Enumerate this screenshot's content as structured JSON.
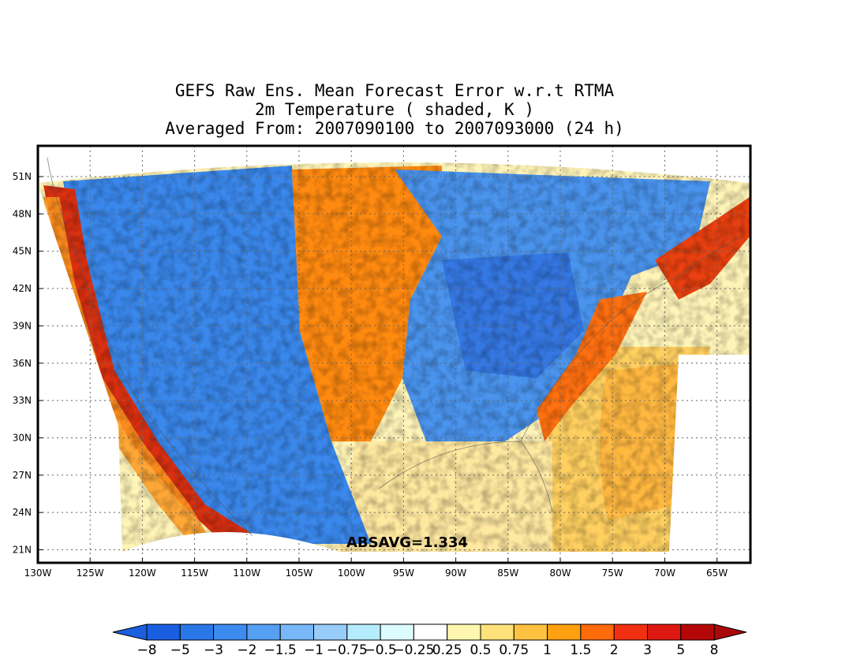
{
  "titles": {
    "line1": "GEFS Raw Ens. Mean Forecast Error w.r.t RTMA",
    "line2": "2m Temperature ( shaded, K )",
    "line3": "Averaged From: 2007090100 to 2007093000 (24 h)"
  },
  "stat": {
    "text": "ABSAVG=1.334"
  },
  "axes": {
    "lat_labels": [
      "51N",
      "48N",
      "45N",
      "42N",
      "39N",
      "36N",
      "33N",
      "30N",
      "27N",
      "24N",
      "21N"
    ],
    "lat_values": [
      51,
      48,
      45,
      42,
      39,
      36,
      33,
      30,
      27,
      24,
      21
    ],
    "lon_labels": [
      "130W",
      "125W",
      "120W",
      "115W",
      "110W",
      "105W",
      "100W",
      "95W",
      "90W",
      "85W",
      "80W",
      "75W",
      "70W",
      "65W"
    ],
    "lon_values": [
      -130,
      -125,
      -120,
      -115,
      -110,
      -105,
      -100,
      -95,
      -90,
      -85,
      -80,
      -75,
      -70,
      -65
    ]
  },
  "colorbar": {
    "labels": [
      "−8",
      "−5",
      "−3",
      "−2",
      "−1.5",
      "−1",
      "−0.75",
      "−0.5",
      "−0.25",
      "0.25",
      "0.5",
      "0.75",
      "1",
      "1.5",
      "2",
      "3",
      "5",
      "8"
    ],
    "colors": [
      "#1a5fe0",
      "#2a78e8",
      "#3c8cf0",
      "#55a0f2",
      "#78b8f8",
      "#98ccfb",
      "#b4ecfb",
      "#dcfcff",
      "#ffffff",
      "#fff7b0",
      "#ffe27a",
      "#ffc240",
      "#ffa010",
      "#ff6a0a",
      "#f03010",
      "#dc1810",
      "#b40808"
    ],
    "under_color": "#1a5fe0",
    "over_color": "#a80808"
  },
  "regions": [
    {
      "name": "pacific-warm-band",
      "color": "#d83010"
    },
    {
      "name": "west-mixed",
      "color": "#3a88ec"
    },
    {
      "name": "plains-warm",
      "color": "#ff8a10"
    },
    {
      "name": "midwest-cold",
      "color": "#4a94ee"
    },
    {
      "name": "atlantic-warm",
      "color": "#ffd060"
    },
    {
      "name": "northeast-warm",
      "color": "#e84010"
    },
    {
      "name": "gulf-neutral",
      "color": "#ffe8a0"
    }
  ]
}
